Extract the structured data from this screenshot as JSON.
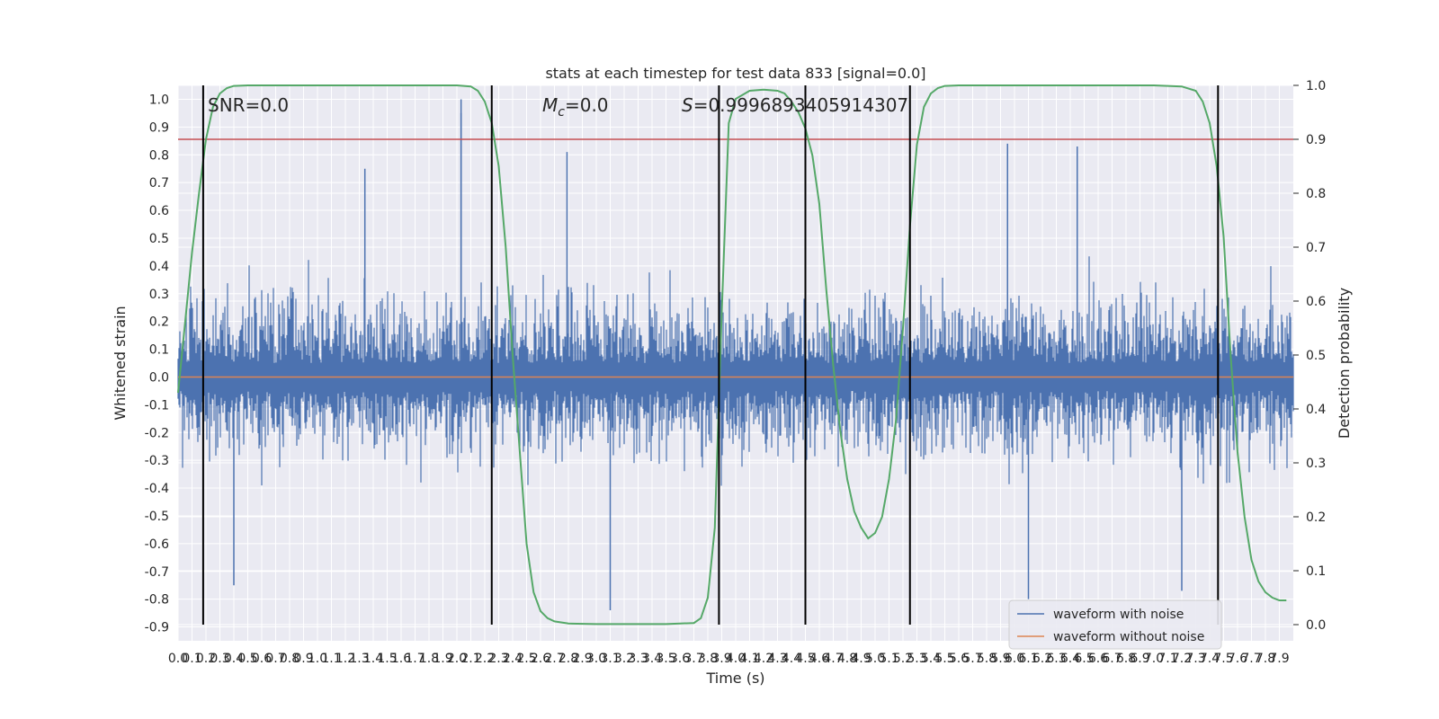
{
  "colors": {
    "background": "#ffffff",
    "plot_bg": "#eaeaf2",
    "grid": "#ffffff",
    "noise_wave": "#4c72b0",
    "clean_wave": "#dd8452",
    "prob_line": "#55a868",
    "threshold": "#c44e52",
    "markers": "#000000",
    "text": "#262626"
  },
  "chart_data": {
    "type": "line",
    "title": "stats at each timestep for test data 833 [signal=0.0]",
    "xlabel": "Time (s)",
    "ylabel": "Whitened strain",
    "y2label": "Detection probability",
    "xlim": [
      0.0,
      8.0
    ],
    "ylim": [
      -0.95,
      1.05
    ],
    "y2lim": [
      -0.03,
      1.0
    ],
    "x_ticks_step": 0.1,
    "y_ticks": [
      -0.9,
      -0.8,
      -0.7,
      -0.6,
      -0.5,
      -0.4,
      -0.3,
      -0.2,
      -0.1,
      0.0,
      0.1,
      0.2,
      0.3,
      0.4,
      0.5,
      0.6,
      0.7,
      0.8,
      0.9,
      1.0
    ],
    "y2_ticks": [
      0.0,
      0.1,
      0.2,
      0.3,
      0.4,
      0.5,
      0.6,
      0.7,
      0.8,
      0.9,
      1.0
    ],
    "grid": true,
    "legend_position": "lower-right",
    "annotations": {
      "snr": "SNR=0.0",
      "mc": "=0.0",
      "s": "=0.9996893405914307"
    },
    "series": [
      {
        "name": "waveform with noise",
        "style": "noise",
        "spikes": [
          {
            "x": 2.03,
            "y": 1.0
          },
          {
            "x": 2.03,
            "y": 0.95
          },
          {
            "x": 2.79,
            "y": 0.81
          },
          {
            "x": 5.95,
            "y": 0.84
          },
          {
            "x": 6.45,
            "y": 0.83
          },
          {
            "x": 1.34,
            "y": 0.75
          },
          {
            "x": 3.1,
            "y": -0.84
          },
          {
            "x": 0.4,
            "y": -0.75
          },
          {
            "x": 6.1,
            "y": -0.8
          },
          {
            "x": 4.5,
            "y": -0.78
          },
          {
            "x": 7.2,
            "y": -0.77
          }
        ]
      },
      {
        "name": "waveform without noise",
        "value": 0.0
      }
    ],
    "detection_probability": {
      "x": [
        0.0,
        0.05,
        0.1,
        0.15,
        0.2,
        0.25,
        0.3,
        0.35,
        0.4,
        0.5,
        0.8,
        1.2,
        1.6,
        2.0,
        2.1,
        2.15,
        2.2,
        2.25,
        2.3,
        2.35,
        2.4,
        2.5,
        2.55,
        2.6,
        2.65,
        2.7,
        2.8,
        3.0,
        3.2,
        3.5,
        3.7,
        3.75,
        3.8,
        3.85,
        3.9,
        3.95,
        4.0,
        4.1,
        4.2,
        4.3,
        4.35,
        4.4,
        4.45,
        4.5,
        4.55,
        4.6,
        4.65,
        4.7,
        4.75,
        4.8,
        4.85,
        4.9,
        4.95,
        5.0,
        5.05,
        5.1,
        5.15,
        5.2,
        5.25,
        5.3,
        5.35,
        5.4,
        5.45,
        5.5,
        5.6,
        5.8,
        6.2,
        6.6,
        7.0,
        7.2,
        7.3,
        7.35,
        7.4,
        7.45,
        7.5,
        7.55,
        7.6,
        7.65,
        7.7,
        7.75,
        7.8,
        7.85,
        7.9,
        7.95
      ],
      "y": [
        0.43,
        0.56,
        0.69,
        0.8,
        0.9,
        0.96,
        0.985,
        0.995,
        0.999,
        1.0,
        1.0,
        1.0,
        1.0,
        1.0,
        0.998,
        0.99,
        0.97,
        0.93,
        0.85,
        0.7,
        0.5,
        0.15,
        0.06,
        0.025,
        0.012,
        0.006,
        0.002,
        0.001,
        0.001,
        0.001,
        0.003,
        0.012,
        0.05,
        0.18,
        0.58,
        0.93,
        0.975,
        0.99,
        0.992,
        0.99,
        0.985,
        0.97,
        0.95,
        0.92,
        0.87,
        0.78,
        0.62,
        0.48,
        0.36,
        0.27,
        0.21,
        0.18,
        0.16,
        0.17,
        0.2,
        0.27,
        0.38,
        0.55,
        0.74,
        0.89,
        0.96,
        0.985,
        0.995,
        0.999,
        1.0,
        1.0,
        1.0,
        1.0,
        1.0,
        0.998,
        0.99,
        0.97,
        0.93,
        0.85,
        0.72,
        0.5,
        0.32,
        0.2,
        0.12,
        0.08,
        0.06,
        0.05,
        0.045,
        0.045
      ]
    },
    "threshold": 0.9,
    "markers_x": [
      0.18,
      2.25,
      3.88,
      4.5,
      5.25,
      7.46
    ]
  }
}
